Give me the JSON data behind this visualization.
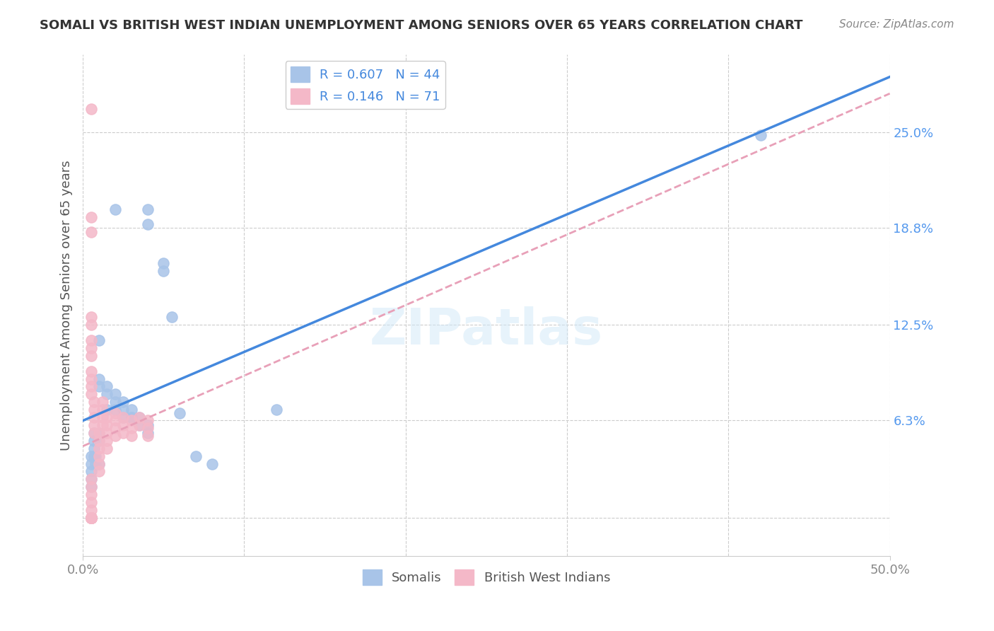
{
  "title": "SOMALI VS BRITISH WEST INDIAN UNEMPLOYMENT AMONG SENIORS OVER 65 YEARS CORRELATION CHART",
  "source": "Source: ZipAtlas.com",
  "xlabel": "",
  "ylabel": "Unemployment Among Seniors over 65 years",
  "xlim": [
    0.0,
    0.5
  ],
  "ylim": [
    -0.025,
    0.3
  ],
  "ytick_values": [
    0.0,
    0.063,
    0.125,
    0.188,
    0.25
  ],
  "ytick_labels": [
    "",
    "6.3%",
    "12.5%",
    "18.8%",
    "25.0%"
  ],
  "somali_R": 0.607,
  "somali_N": 44,
  "bwi_R": 0.146,
  "bwi_N": 71,
  "somali_color": "#a8c4e8",
  "bwi_color": "#f4b8c8",
  "somali_line_color": "#4488dd",
  "bwi_line_color": "#e8a0b8",
  "watermark": "ZIPatlas",
  "somali_x": [
    0.02,
    0.04,
    0.04,
    0.05,
    0.05,
    0.055,
    0.01,
    0.01,
    0.01,
    0.015,
    0.015,
    0.02,
    0.02,
    0.025,
    0.025,
    0.03,
    0.03,
    0.035,
    0.035,
    0.04,
    0.04,
    0.01,
    0.01,
    0.015,
    0.02,
    0.025,
    0.03,
    0.06,
    0.07,
    0.08,
    0.12,
    0.005,
    0.005,
    0.005,
    0.005,
    0.007,
    0.007,
    0.007,
    0.007,
    0.008,
    0.008,
    0.01,
    0.42,
    0.005
  ],
  "somali_y": [
    0.2,
    0.2,
    0.19,
    0.165,
    0.16,
    0.13,
    0.115,
    0.09,
    0.085,
    0.085,
    0.08,
    0.08,
    0.075,
    0.075,
    0.07,
    0.07,
    0.065,
    0.065,
    0.06,
    0.06,
    0.055,
    0.055,
    0.05,
    0.07,
    0.07,
    0.065,
    0.065,
    0.068,
    0.04,
    0.035,
    0.07,
    0.04,
    0.035,
    0.03,
    0.025,
    0.055,
    0.05,
    0.045,
    0.04,
    0.04,
    0.035,
    0.035,
    0.248,
    0.02
  ],
  "bwi_x": [
    0.005,
    0.005,
    0.005,
    0.005,
    0.005,
    0.005,
    0.005,
    0.005,
    0.005,
    0.005,
    0.005,
    0.005,
    0.007,
    0.007,
    0.007,
    0.007,
    0.007,
    0.01,
    0.01,
    0.01,
    0.01,
    0.01,
    0.01,
    0.012,
    0.012,
    0.012,
    0.012,
    0.015,
    0.015,
    0.015,
    0.015,
    0.015,
    0.02,
    0.02,
    0.02,
    0.02,
    0.025,
    0.025,
    0.025,
    0.03,
    0.03,
    0.03,
    0.035,
    0.035,
    0.04,
    0.04,
    0.04,
    0.005,
    0.005,
    0.005,
    0.005,
    0.005,
    0.005,
    0.005,
    0.005,
    0.005,
    0.005,
    0.005,
    0.005,
    0.005,
    0.005,
    0.005,
    0.005,
    0.005,
    0.005,
    0.005,
    0.005,
    0.005,
    0.005,
    0.005,
    0.005
  ],
  "bwi_y": [
    0.265,
    0.195,
    0.185,
    0.13,
    0.125,
    0.115,
    0.11,
    0.105,
    0.095,
    0.09,
    0.085,
    0.08,
    0.075,
    0.07,
    0.065,
    0.06,
    0.055,
    0.055,
    0.05,
    0.045,
    0.04,
    0.035,
    0.03,
    0.075,
    0.07,
    0.065,
    0.06,
    0.065,
    0.06,
    0.055,
    0.05,
    0.045,
    0.068,
    0.063,
    0.058,
    0.053,
    0.065,
    0.06,
    0.055,
    0.063,
    0.058,
    0.053,
    0.065,
    0.06,
    0.063,
    0.058,
    0.053,
    0.025,
    0.02,
    0.015,
    0.01,
    0.005,
    0.0,
    0.0,
    0.0,
    0.0,
    0.0,
    0.0,
    0.0,
    0.0,
    0.0,
    0.0,
    0.0,
    0.0,
    0.0,
    0.0,
    0.0,
    0.0,
    0.0,
    0.0,
    0.0
  ]
}
